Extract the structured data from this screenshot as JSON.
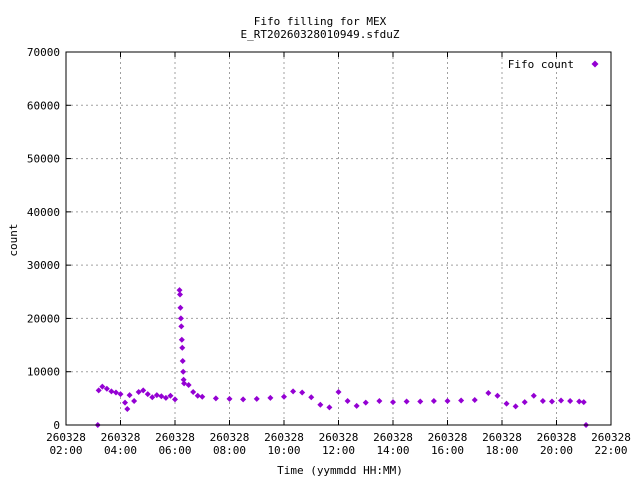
{
  "chart_data": {
    "type": "scatter",
    "title_lines": [
      "Fifo filling for MEX",
      "E_RT20260328010949.sfduZ"
    ],
    "xlabel": "Time (yymmdd HH:MM)",
    "ylabel": "count",
    "x_range": [
      "260328 02:00",
      "260328 22:00"
    ],
    "ylim": [
      0,
      70000
    ],
    "y_ticks": [
      0,
      10000,
      20000,
      30000,
      40000,
      50000,
      60000,
      70000
    ],
    "x_ticks": [
      {
        "value": "260328 02:00",
        "date": "260328",
        "time": "02:00"
      },
      {
        "value": "260328 04:00",
        "date": "260328",
        "time": "04:00"
      },
      {
        "value": "260328 06:00",
        "date": "260328",
        "time": "06:00"
      },
      {
        "value": "260328 08:00",
        "date": "260328",
        "time": "08:00"
      },
      {
        "value": "260328 10:00",
        "date": "260328",
        "time": "10:00"
      },
      {
        "value": "260328 12:00",
        "date": "260328",
        "time": "12:00"
      },
      {
        "value": "260328 14:00",
        "date": "260328",
        "time": "14:00"
      },
      {
        "value": "260328 16:00",
        "date": "260328",
        "time": "16:00"
      },
      {
        "value": "260328 18:00",
        "date": "260328",
        "time": "18:00"
      },
      {
        "value": "260328 20:00",
        "date": "260328",
        "time": "20:00"
      },
      {
        "value": "260328 22:00",
        "date": "260328",
        "time": "22:00"
      }
    ],
    "grid": true,
    "legend_position": "top-right",
    "series": [
      {
        "name": "Fifo count",
        "color": "#9400d3",
        "points": [
          [
            "260328 03:10",
            0
          ],
          [
            "260328 03:12",
            6500
          ],
          [
            "260328 03:20",
            7200
          ],
          [
            "260328 03:30",
            6800
          ],
          [
            "260328 03:40",
            6300
          ],
          [
            "260328 03:50",
            6100
          ],
          [
            "260328 04:00",
            5800
          ],
          [
            "260328 04:10",
            4200
          ],
          [
            "260328 04:15",
            3000
          ],
          [
            "260328 04:20",
            5600
          ],
          [
            "260328 04:30",
            4500
          ],
          [
            "260328 04:40",
            6200
          ],
          [
            "260328 04:50",
            6500
          ],
          [
            "260328 05:00",
            5800
          ],
          [
            "260328 05:10",
            5200
          ],
          [
            "260328 05:20",
            5600
          ],
          [
            "260328 05:30",
            5400
          ],
          [
            "260328 05:40",
            5100
          ],
          [
            "260328 05:50",
            5500
          ],
          [
            "260328 06:00",
            4800
          ],
          [
            "260328 06:10",
            25300
          ],
          [
            "260328 06:11",
            24500
          ],
          [
            "260328 06:12",
            22000
          ],
          [
            "260328 06:13",
            20000
          ],
          [
            "260328 06:14",
            18500
          ],
          [
            "260328 06:15",
            16000
          ],
          [
            "260328 06:16",
            14500
          ],
          [
            "260328 06:17",
            12000
          ],
          [
            "260328 06:18",
            10000
          ],
          [
            "260328 06:19",
            8500
          ],
          [
            "260328 06:20",
            7800
          ],
          [
            "260328 06:30",
            7500
          ],
          [
            "260328 06:40",
            6200
          ],
          [
            "260328 06:50",
            5500
          ],
          [
            "260328 07:00",
            5300
          ],
          [
            "260328 07:30",
            5000
          ],
          [
            "260328 08:00",
            4900
          ],
          [
            "260328 08:30",
            4800
          ],
          [
            "260328 09:00",
            4900
          ],
          [
            "260328 09:30",
            5100
          ],
          [
            "260328 10:00",
            5300
          ],
          [
            "260328 10:20",
            6300
          ],
          [
            "260328 10:40",
            6100
          ],
          [
            "260328 11:00",
            5200
          ],
          [
            "260328 11:20",
            3800
          ],
          [
            "260328 11:40",
            3300
          ],
          [
            "260328 12:00",
            6200
          ],
          [
            "260328 12:20",
            4500
          ],
          [
            "260328 12:40",
            3600
          ],
          [
            "260328 13:00",
            4200
          ],
          [
            "260328 13:30",
            4500
          ],
          [
            "260328 14:00",
            4300
          ],
          [
            "260328 14:30",
            4400
          ],
          [
            "260328 15:00",
            4400
          ],
          [
            "260328 15:30",
            4500
          ],
          [
            "260328 16:00",
            4500
          ],
          [
            "260328 16:30",
            4600
          ],
          [
            "260328 17:00",
            4700
          ],
          [
            "260328 17:30",
            6000
          ],
          [
            "260328 17:50",
            5500
          ],
          [
            "260328 18:10",
            4000
          ],
          [
            "260328 18:30",
            3500
          ],
          [
            "260328 18:50",
            4300
          ],
          [
            "260328 19:10",
            5500
          ],
          [
            "260328 19:30",
            4500
          ],
          [
            "260328 19:50",
            4400
          ],
          [
            "260328 20:10",
            4600
          ],
          [
            "260328 20:30",
            4500
          ],
          [
            "260328 20:50",
            4400
          ],
          [
            "260328 21:00",
            4300
          ],
          [
            "260328 21:05",
            0
          ]
        ]
      }
    ]
  }
}
